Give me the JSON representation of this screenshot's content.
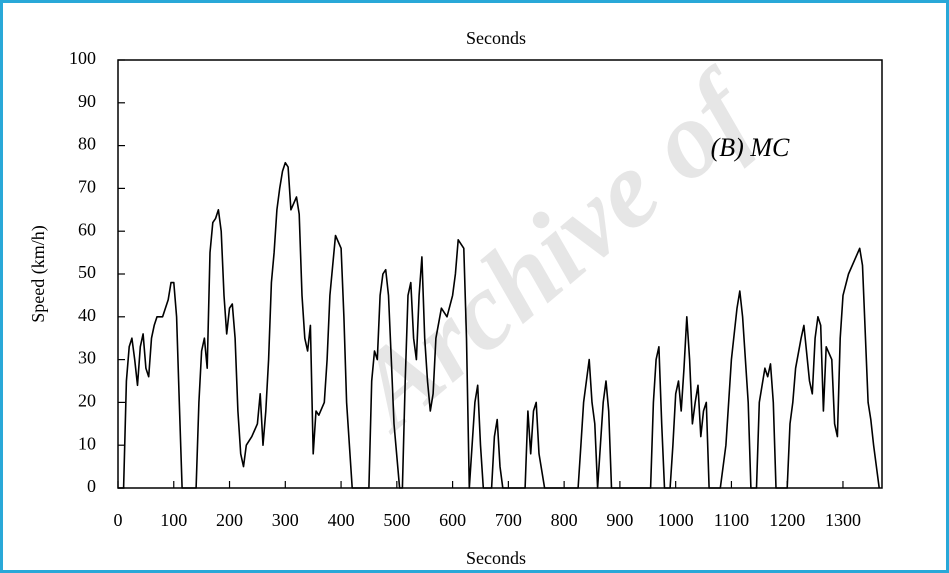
{
  "chart_data": {
    "type": "line",
    "title": "Seconds",
    "xlabel": "Seconds",
    "ylabel": "Speed (km/h)",
    "annotation": "(B) MC",
    "watermark": "Archive of",
    "color": "#000000",
    "xlim": [
      0,
      1370
    ],
    "xticks": [
      0,
      100,
      200,
      300,
      400,
      500,
      600,
      700,
      800,
      900,
      1000,
      1100,
      1200,
      1300
    ],
    "ylim": [
      0,
      100
    ],
    "yticks": [
      0,
      10,
      20,
      30,
      40,
      50,
      60,
      70,
      80,
      90,
      100
    ],
    "x": [
      0,
      10,
      15,
      20,
      25,
      30,
      35,
      40,
      45,
      50,
      55,
      60,
      65,
      70,
      80,
      90,
      95,
      100,
      105,
      110,
      115,
      140,
      145,
      150,
      155,
      160,
      165,
      170,
      175,
      180,
      185,
      190,
      195,
      200,
      205,
      210,
      215,
      220,
      225,
      230,
      240,
      250,
      255,
      260,
      265,
      270,
      275,
      280,
      285,
      290,
      295,
      300,
      305,
      310,
      320,
      325,
      330,
      335,
      340,
      345,
      350,
      355,
      360,
      370,
      375,
      380,
      390,
      400,
      405,
      410,
      420,
      450,
      455,
      460,
      465,
      470,
      475,
      480,
      485,
      490,
      495,
      505,
      510,
      515,
      520,
      525,
      530,
      535,
      540,
      545,
      550,
      555,
      560,
      565,
      570,
      580,
      590,
      600,
      605,
      610,
      620,
      625,
      630,
      640,
      645,
      650,
      655,
      670,
      675,
      680,
      685,
      690,
      730,
      735,
      740,
      745,
      750,
      755,
      765,
      825,
      830,
      835,
      840,
      845,
      850,
      855,
      860,
      865,
      870,
      875,
      880,
      885,
      955,
      960,
      965,
      970,
      975,
      980,
      990,
      995,
      1000,
      1005,
      1010,
      1015,
      1020,
      1025,
      1030,
      1035,
      1040,
      1045,
      1050,
      1055,
      1060,
      1080,
      1090,
      1100,
      1110,
      1115,
      1120,
      1130,
      1135,
      1145,
      1150,
      1160,
      1165,
      1170,
      1175,
      1180,
      1200,
      1205,
      1210,
      1215,
      1225,
      1230,
      1240,
      1245,
      1250,
      1255,
      1260,
      1265,
      1270,
      1280,
      1285,
      1290,
      1295,
      1300,
      1310,
      1320,
      1330,
      1335,
      1345,
      1350,
      1355,
      1365
    ],
    "values": [
      0,
      0,
      25,
      33,
      35,
      30,
      24,
      33,
      36,
      28,
      26,
      35,
      38,
      40,
      40,
      44,
      48,
      48,
      40,
      20,
      0,
      0,
      20,
      32,
      35,
      28,
      55,
      62,
      63,
      65,
      60,
      45,
      36,
      42,
      43,
      35,
      18,
      8,
      5,
      10,
      12,
      15,
      22,
      10,
      18,
      30,
      48,
      55,
      65,
      70,
      74,
      76,
      75,
      65,
      68,
      64,
      45,
      35,
      32,
      38,
      8,
      18,
      17,
      20,
      30,
      45,
      59,
      56,
      40,
      20,
      0,
      0,
      25,
      32,
      30,
      45,
      50,
      51,
      45,
      30,
      15,
      0,
      0,
      25,
      45,
      48,
      35,
      30,
      45,
      54,
      35,
      25,
      18,
      22,
      35,
      42,
      40,
      45,
      50,
      58,
      56,
      35,
      0,
      20,
      24,
      10,
      0,
      0,
      12,
      16,
      5,
      0,
      0,
      18,
      8,
      18,
      20,
      8,
      0,
      0,
      10,
      20,
      25,
      30,
      20,
      15,
      0,
      10,
      20,
      25,
      18,
      0,
      0,
      20,
      30,
      33,
      15,
      0,
      0,
      10,
      22,
      25,
      18,
      28,
      40,
      30,
      15,
      20,
      24,
      12,
      18,
      20,
      0,
      0,
      10,
      30,
      42,
      46,
      40,
      20,
      0,
      0,
      20,
      28,
      26,
      29,
      20,
      0,
      0,
      15,
      20,
      28,
      35,
      38,
      25,
      22,
      35,
      40,
      38,
      18,
      33,
      30,
      15,
      12,
      35,
      45,
      50,
      53,
      56,
      52,
      20,
      16,
      10,
      0
    ]
  }
}
